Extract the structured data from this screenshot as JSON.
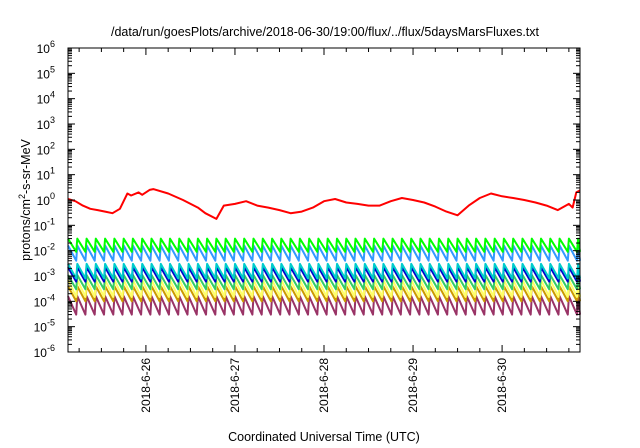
{
  "chart_data": {
    "type": "line",
    "title": "/data/run/goesPlots/archive/2018-06-30/19:00/flux/../flux/5daysMarsFluxes.txt",
    "xlabel": "Coordinated Universal Time (UTC)",
    "ylabel_parts": [
      "protons/cm",
      "2",
      "-s-sr-MeV"
    ],
    "y_scale": "log",
    "ylim": [
      1e-06,
      1000000.0
    ],
    "y_ticks": [
      {
        "base": "10",
        "exp": "-6",
        "value": -6
      },
      {
        "base": "10",
        "exp": "-5",
        "value": -5
      },
      {
        "base": "10",
        "exp": "-4",
        "value": -4
      },
      {
        "base": "10",
        "exp": "-3",
        "value": -3
      },
      {
        "base": "10",
        "exp": "-2",
        "value": -2
      },
      {
        "base": "10",
        "exp": "-1",
        "value": -1
      },
      {
        "base": "10",
        "exp": "0",
        "value": 0
      },
      {
        "base": "10",
        "exp": "1",
        "value": 1
      },
      {
        "base": "10",
        "exp": "2",
        "value": 2
      },
      {
        "base": "10",
        "exp": "3",
        "value": 3
      },
      {
        "base": "10",
        "exp": "4",
        "value": 4
      },
      {
        "base": "10",
        "exp": "5",
        "value": 5
      },
      {
        "base": "10",
        "exp": "6",
        "value": 6
      }
    ],
    "xlim": [
      "2018-06-25T03:00",
      "2018-06-30T21:00"
    ],
    "x_ticks": [
      {
        "label": "2018-6-26",
        "value": "2018-06-26T00:00"
      },
      {
        "label": "2018-6-27",
        "value": "2018-06-27T00:00"
      },
      {
        "label": "2018-6-28",
        "value": "2018-06-28T00:00"
      },
      {
        "label": "2018-6-29",
        "value": "2018-06-29T00:00"
      },
      {
        "label": "2018-6-30",
        "value": "2018-06-30T00:00"
      }
    ],
    "grid": false,
    "legend": "none",
    "series": [
      {
        "color": "#ff0000",
        "x": [
          "2018-06-25T03:00",
          "2018-06-25T05:00",
          "2018-06-25T07:00",
          "2018-06-25T09:00",
          "2018-06-25T11:00",
          "2018-06-25T13:00",
          "2018-06-25T15:00",
          "2018-06-25T17:00",
          "2018-06-25T19:00",
          "2018-06-25T20:00",
          "2018-06-25T22:00",
          "2018-06-25T23:00",
          "2018-06-26T01:00",
          "2018-06-26T02:00",
          "2018-06-26T06:00",
          "2018-06-26T10:00",
          "2018-06-26T14:00",
          "2018-06-26T16:00",
          "2018-06-26T19:00",
          "2018-06-26T21:00",
          "2018-06-27T00:00",
          "2018-06-27T03:00",
          "2018-06-27T06:00",
          "2018-06-27T09:00",
          "2018-06-27T12:00",
          "2018-06-27T15:00",
          "2018-06-27T18:00",
          "2018-06-27T21:00",
          "2018-06-28T00:00",
          "2018-06-28T03:00",
          "2018-06-28T06:00",
          "2018-06-28T09:00",
          "2018-06-28T12:00",
          "2018-06-28T15:00",
          "2018-06-28T18:00",
          "2018-06-28T21:00",
          "2018-06-29T00:00",
          "2018-06-29T03:00",
          "2018-06-29T06:00",
          "2018-06-29T09:00",
          "2018-06-29T12:00",
          "2018-06-29T15:00",
          "2018-06-29T18:00",
          "2018-06-29T21:00",
          "2018-06-30T00:00",
          "2018-06-30T03:00",
          "2018-06-30T06:00",
          "2018-06-30T09:00",
          "2018-06-30T12:00",
          "2018-06-30T15:00",
          "2018-06-30T18:00",
          "2018-06-30T19:00",
          "2018-06-30T20:00",
          "2018-06-30T21:00"
        ],
        "y": [
          1.1,
          0.9,
          0.6,
          0.45,
          0.4,
          0.35,
          0.3,
          0.45,
          1.8,
          1.5,
          2.0,
          1.6,
          2.5,
          2.7,
          1.8,
          1.0,
          0.5,
          0.3,
          0.18,
          0.6,
          0.7,
          0.9,
          0.6,
          0.5,
          0.4,
          0.3,
          0.35,
          0.5,
          0.9,
          1.1,
          0.8,
          0.7,
          0.6,
          0.6,
          0.9,
          1.2,
          1.0,
          0.8,
          0.55,
          0.35,
          0.25,
          0.6,
          1.2,
          1.8,
          1.4,
          1.2,
          1.0,
          0.8,
          0.6,
          0.4,
          0.7,
          0.5,
          2.0,
          2.4
        ]
      },
      {
        "color": "#00ff00",
        "x": [
          "2018-06-25T03:00",
          "2018-06-30T21:00"
        ],
        "y": [
          0.02,
          0.03
        ],
        "pattern": {
          "low": 0.009,
          "high": 0.03,
          "period_hours": 2.5
        }
      },
      {
        "color": "#3399ff",
        "x": [
          "2018-06-25T03:00",
          "2018-06-30T21:00"
        ],
        "y": [
          0.01,
          0.015
        ],
        "pattern": {
          "low": 0.004,
          "high": 0.016,
          "period_hours": 2.5
        }
      },
      {
        "color": "#00cccc",
        "x": [
          "2018-06-25T03:00",
          "2018-06-30T21:00"
        ],
        "y": [
          0.002,
          0.003
        ],
        "pattern": {
          "low": 0.0008,
          "high": 0.003,
          "period_hours": 2.5
        }
      },
      {
        "color": "#0000cc",
        "x": [
          "2018-06-25T03:00",
          "2018-06-30T21:00"
        ],
        "y": [
          0.0015,
          0.002
        ],
        "pattern": {
          "low": 0.0006,
          "high": 0.0022,
          "period_hours": 2.5
        }
      },
      {
        "color": "#33cc66",
        "x": [
          "2018-06-25T03:00",
          "2018-06-30T21:00"
        ],
        "y": [
          0.0008,
          0.001
        ],
        "pattern": {
          "low": 0.0003,
          "high": 0.0011,
          "period_hours": 2.5
        }
      },
      {
        "color": "#ffff66",
        "x": [
          "2018-06-25T03:00",
          "2018-06-30T21:00"
        ],
        "y": [
          0.0004,
          0.0006
        ],
        "pattern": {
          "low": 0.00015,
          "high": 0.0007,
          "period_hours": 2.5
        }
      },
      {
        "color": "#cc9900",
        "x": [
          "2018-06-25T03:00",
          "2018-06-30T21:00"
        ],
        "y": [
          0.0003,
          0.0004
        ],
        "pattern": {
          "low": 0.0001,
          "high": 0.0004,
          "period_hours": 2.5
        }
      },
      {
        "color": "#993366",
        "x": [
          "2018-06-25T03:00",
          "2018-06-30T21:00"
        ],
        "y": [
          0.0001,
          0.00015
        ],
        "pattern": {
          "low": 3e-05,
          "high": 0.00016,
          "period_hours": 2.5
        }
      }
    ]
  }
}
